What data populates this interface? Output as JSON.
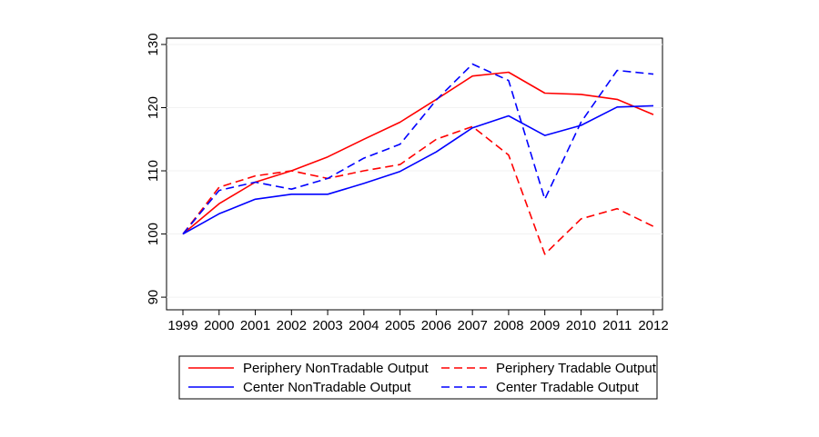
{
  "chart_data": {
    "type": "line",
    "title": "",
    "xlabel": "",
    "ylabel": "",
    "categories": [
      "1999",
      "2000",
      "2001",
      "2002",
      "2003",
      "2004",
      "2005",
      "2006",
      "2007",
      "2008",
      "2009",
      "2010",
      "2011",
      "2012"
    ],
    "ylim": [
      88,
      131
    ],
    "yticks": [
      "90",
      "100",
      "110",
      "120",
      "130"
    ],
    "grid": "horizontal",
    "legend_position": "bottom",
    "series": [
      {
        "name": "Periphery NonTradable Output",
        "color": "#ff0000",
        "dashed": false,
        "values": [
          100,
          104.8,
          108.2,
          110.0,
          112.2,
          115.0,
          117.7,
          121.3,
          125.0,
          125.6,
          122.3,
          122.1,
          121.3,
          118.9
        ]
      },
      {
        "name": "Periphery Tradable Output",
        "color": "#ff0000",
        "dashed": true,
        "values": [
          100,
          107.4,
          109.2,
          110.0,
          108.8,
          110.0,
          111.0,
          115.0,
          117.0,
          112.5,
          96.8,
          102.4,
          104.0,
          101.2
        ]
      },
      {
        "name": "Center NonTradable Output",
        "color": "#0000ff",
        "dashed": false,
        "values": [
          100,
          103.2,
          105.5,
          106.3,
          106.3,
          108.0,
          109.9,
          113.0,
          116.8,
          118.7,
          115.6,
          117.2,
          120.1,
          120.3
        ]
      },
      {
        "name": "Center Tradable Output",
        "color": "#0000ff",
        "dashed": true,
        "values": [
          100,
          106.9,
          108.2,
          107.1,
          108.8,
          112.0,
          114.2,
          121.2,
          126.9,
          124.3,
          105.5,
          117.7,
          125.9,
          125.3
        ]
      }
    ]
  }
}
